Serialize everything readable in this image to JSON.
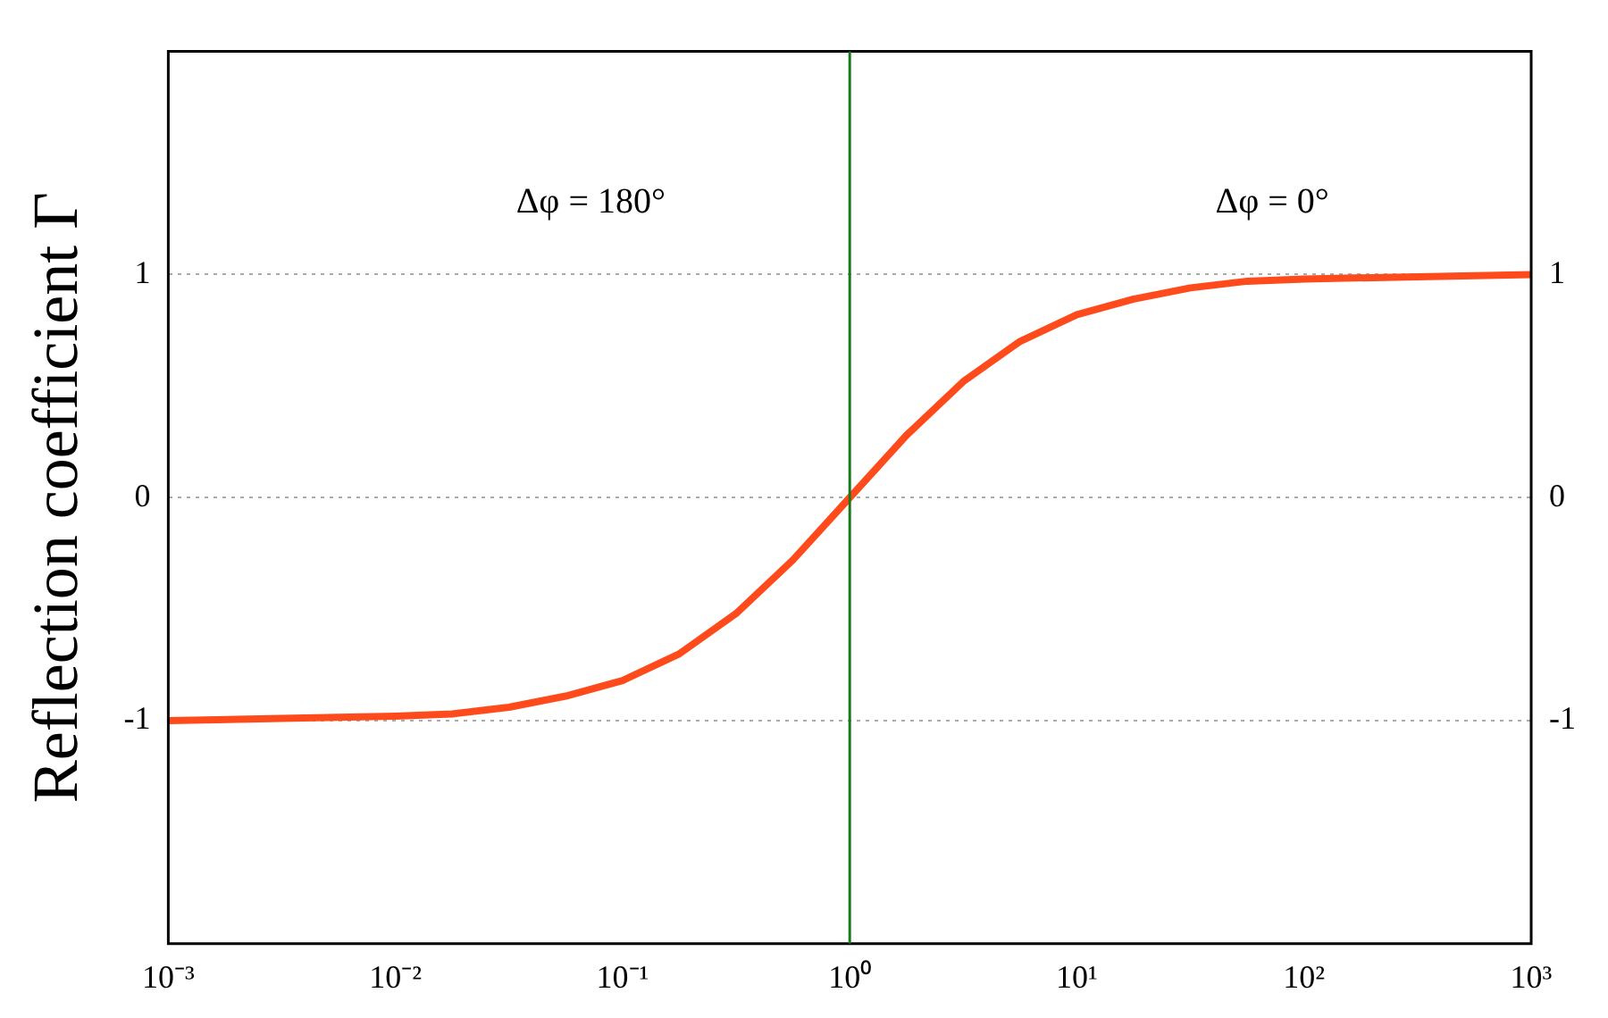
{
  "chart_data": {
    "type": "line",
    "ylabel": "Reflection coefficient Γ",
    "annotations": [
      "Δφ = 180°",
      "Δφ = 0°"
    ],
    "series": [
      {
        "color": "#ff4a1c",
        "x": [
          0.001,
          0.00316,
          0.01,
          0.0178,
          0.0316,
          0.0562,
          0.1,
          0.178,
          0.316,
          0.562,
          1,
          1.78,
          3.16,
          5.62,
          10,
          17.8,
          31.6,
          56.2,
          100,
          316,
          1000
        ],
        "values": [
          -1.0,
          -0.99,
          -0.98,
          -0.97,
          -0.94,
          -0.89,
          -0.82,
          -0.7,
          -0.52,
          -0.28,
          0,
          0.28,
          0.52,
          0.7,
          0.82,
          0.89,
          0.94,
          0.97,
          0.98,
          0.99,
          1.0
        ]
      }
    ],
    "log": "x",
    "xlim": [
      0.001,
      1000
    ],
    "xticks": [
      {
        "value": 0.001,
        "label": "10⁻³"
      },
      {
        "value": 0.01,
        "label": "10⁻²"
      },
      {
        "value": 0.1,
        "label": "10⁻¹"
      },
      {
        "value": 1,
        "label": "10⁰"
      },
      {
        "value": 10,
        "label": "10¹"
      },
      {
        "value": 100,
        "label": "10²"
      },
      {
        "value": 1000,
        "label": "10³"
      }
    ],
    "ylim": [
      -2,
      2
    ],
    "yticks": [
      -1,
      0,
      1
    ],
    "y2lim": [
      -2,
      2
    ],
    "y2ticks": [
      -1,
      0,
      1
    ],
    "ref_lines": [
      {
        "axis": "x",
        "value": 1,
        "color": "#1a7a1a"
      }
    ],
    "grid": "y",
    "marker": "none",
    "line_style": "solid",
    "legend": false
  }
}
